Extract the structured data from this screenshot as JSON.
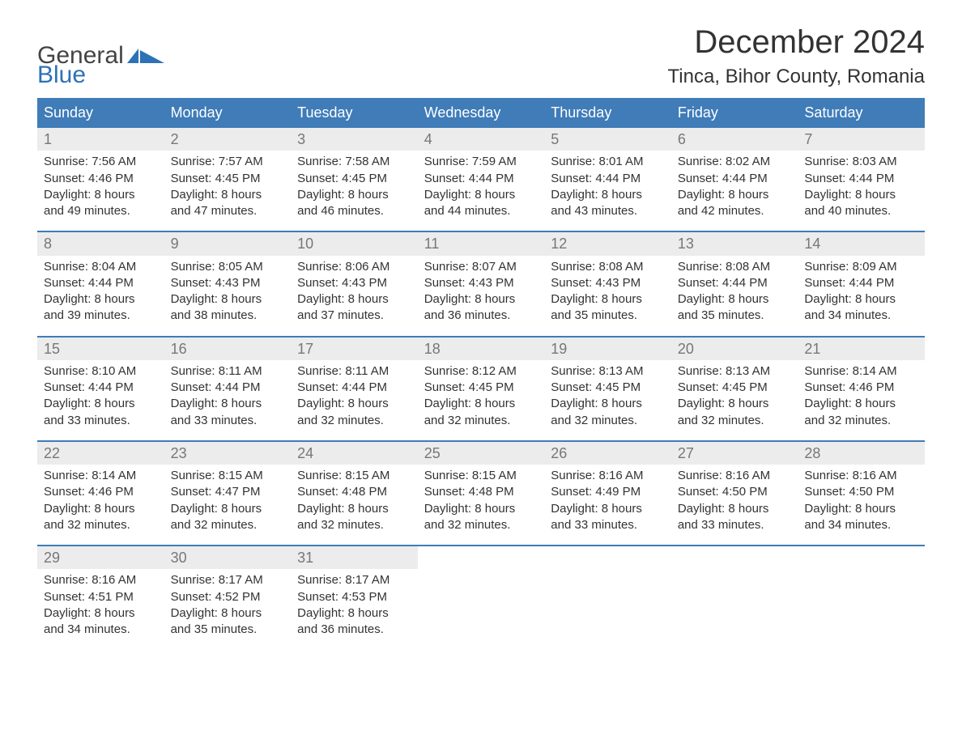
{
  "brand": {
    "word1": "General",
    "word2": "Blue"
  },
  "colors": {
    "brand_blue": "#2d72b6",
    "header_bg": "#3f7cb8",
    "daynum_bg": "#ececec",
    "daynum_fg": "#777777",
    "text": "#333333",
    "page_bg": "#ffffff"
  },
  "typography": {
    "month_title_fontsize": 40,
    "location_fontsize": 24,
    "dow_fontsize": 18,
    "daynum_fontsize": 18,
    "body_fontsize": 15
  },
  "title": "December 2024",
  "location": "Tinca, Bihor County, Romania",
  "dow": [
    "Sunday",
    "Monday",
    "Tuesday",
    "Wednesday",
    "Thursday",
    "Friday",
    "Saturday"
  ],
  "label_prefix": {
    "sunrise": "Sunrise: ",
    "sunset": "Sunset: ",
    "daylight": "Daylight: "
  },
  "weeks": [
    [
      {
        "n": "1",
        "sunrise": "7:56 AM",
        "sunset": "4:46 PM",
        "dl1": "8 hours",
        "dl2": "and 49 minutes."
      },
      {
        "n": "2",
        "sunrise": "7:57 AM",
        "sunset": "4:45 PM",
        "dl1": "8 hours",
        "dl2": "and 47 minutes."
      },
      {
        "n": "3",
        "sunrise": "7:58 AM",
        "sunset": "4:45 PM",
        "dl1": "8 hours",
        "dl2": "and 46 minutes."
      },
      {
        "n": "4",
        "sunrise": "7:59 AM",
        "sunset": "4:44 PM",
        "dl1": "8 hours",
        "dl2": "and 44 minutes."
      },
      {
        "n": "5",
        "sunrise": "8:01 AM",
        "sunset": "4:44 PM",
        "dl1": "8 hours",
        "dl2": "and 43 minutes."
      },
      {
        "n": "6",
        "sunrise": "8:02 AM",
        "sunset": "4:44 PM",
        "dl1": "8 hours",
        "dl2": "and 42 minutes."
      },
      {
        "n": "7",
        "sunrise": "8:03 AM",
        "sunset": "4:44 PM",
        "dl1": "8 hours",
        "dl2": "and 40 minutes."
      }
    ],
    [
      {
        "n": "8",
        "sunrise": "8:04 AM",
        "sunset": "4:44 PM",
        "dl1": "8 hours",
        "dl2": "and 39 minutes."
      },
      {
        "n": "9",
        "sunrise": "8:05 AM",
        "sunset": "4:43 PM",
        "dl1": "8 hours",
        "dl2": "and 38 minutes."
      },
      {
        "n": "10",
        "sunrise": "8:06 AM",
        "sunset": "4:43 PM",
        "dl1": "8 hours",
        "dl2": "and 37 minutes."
      },
      {
        "n": "11",
        "sunrise": "8:07 AM",
        "sunset": "4:43 PM",
        "dl1": "8 hours",
        "dl2": "and 36 minutes."
      },
      {
        "n": "12",
        "sunrise": "8:08 AM",
        "sunset": "4:43 PM",
        "dl1": "8 hours",
        "dl2": "and 35 minutes."
      },
      {
        "n": "13",
        "sunrise": "8:08 AM",
        "sunset": "4:44 PM",
        "dl1": "8 hours",
        "dl2": "and 35 minutes."
      },
      {
        "n": "14",
        "sunrise": "8:09 AM",
        "sunset": "4:44 PM",
        "dl1": "8 hours",
        "dl2": "and 34 minutes."
      }
    ],
    [
      {
        "n": "15",
        "sunrise": "8:10 AM",
        "sunset": "4:44 PM",
        "dl1": "8 hours",
        "dl2": "and 33 minutes."
      },
      {
        "n": "16",
        "sunrise": "8:11 AM",
        "sunset": "4:44 PM",
        "dl1": "8 hours",
        "dl2": "and 33 minutes."
      },
      {
        "n": "17",
        "sunrise": "8:11 AM",
        "sunset": "4:44 PM",
        "dl1": "8 hours",
        "dl2": "and 32 minutes."
      },
      {
        "n": "18",
        "sunrise": "8:12 AM",
        "sunset": "4:45 PM",
        "dl1": "8 hours",
        "dl2": "and 32 minutes."
      },
      {
        "n": "19",
        "sunrise": "8:13 AM",
        "sunset": "4:45 PM",
        "dl1": "8 hours",
        "dl2": "and 32 minutes."
      },
      {
        "n": "20",
        "sunrise": "8:13 AM",
        "sunset": "4:45 PM",
        "dl1": "8 hours",
        "dl2": "and 32 minutes."
      },
      {
        "n": "21",
        "sunrise": "8:14 AM",
        "sunset": "4:46 PM",
        "dl1": "8 hours",
        "dl2": "and 32 minutes."
      }
    ],
    [
      {
        "n": "22",
        "sunrise": "8:14 AM",
        "sunset": "4:46 PM",
        "dl1": "8 hours",
        "dl2": "and 32 minutes."
      },
      {
        "n": "23",
        "sunrise": "8:15 AM",
        "sunset": "4:47 PM",
        "dl1": "8 hours",
        "dl2": "and 32 minutes."
      },
      {
        "n": "24",
        "sunrise": "8:15 AM",
        "sunset": "4:48 PM",
        "dl1": "8 hours",
        "dl2": "and 32 minutes."
      },
      {
        "n": "25",
        "sunrise": "8:15 AM",
        "sunset": "4:48 PM",
        "dl1": "8 hours",
        "dl2": "and 32 minutes."
      },
      {
        "n": "26",
        "sunrise": "8:16 AM",
        "sunset": "4:49 PM",
        "dl1": "8 hours",
        "dl2": "and 33 minutes."
      },
      {
        "n": "27",
        "sunrise": "8:16 AM",
        "sunset": "4:50 PM",
        "dl1": "8 hours",
        "dl2": "and 33 minutes."
      },
      {
        "n": "28",
        "sunrise": "8:16 AM",
        "sunset": "4:50 PM",
        "dl1": "8 hours",
        "dl2": "and 34 minutes."
      }
    ],
    [
      {
        "n": "29",
        "sunrise": "8:16 AM",
        "sunset": "4:51 PM",
        "dl1": "8 hours",
        "dl2": "and 34 minutes."
      },
      {
        "n": "30",
        "sunrise": "8:17 AM",
        "sunset": "4:52 PM",
        "dl1": "8 hours",
        "dl2": "and 35 minutes."
      },
      {
        "n": "31",
        "sunrise": "8:17 AM",
        "sunset": "4:53 PM",
        "dl1": "8 hours",
        "dl2": "and 36 minutes."
      },
      null,
      null,
      null,
      null
    ]
  ]
}
